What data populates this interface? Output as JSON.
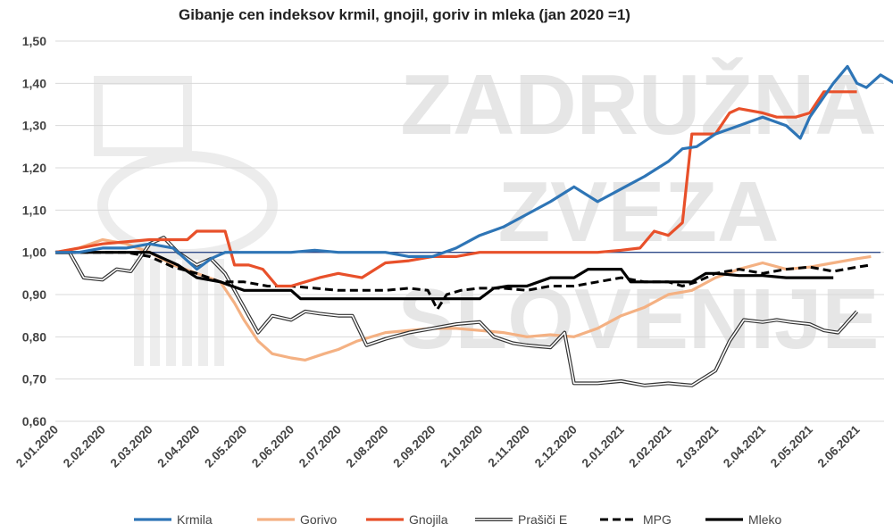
{
  "chart_data": {
    "type": "line",
    "title": "Gibanje cen indeksov krmil, gnojil, goriv in mleka (jan 2020 =1)",
    "xlabel": "",
    "ylabel": "",
    "ylim": [
      0.6,
      1.5
    ],
    "y_ticks": [
      "0,60",
      "0,70",
      "0,80",
      "0,90",
      "1,00",
      "1,10",
      "1,20",
      "1,30",
      "1,40",
      "1,50"
    ],
    "x_ticks": [
      "2.01.2020",
      "2.02.2020",
      "2.03.2020",
      "2.04.2020",
      "2.05.2020",
      "2.06.2020",
      "2.07.2020",
      "2.08.2020",
      "2.09.2020",
      "2.10.2020",
      "2.11.2020",
      "2.12.2020",
      "2.01.2021",
      "2.02.2021",
      "2.03.2021",
      "2.04.2021",
      "2.05.2021",
      "2.06.2021"
    ],
    "grid": true,
    "legend_position": "bottom",
    "reference_line": {
      "y": 1.0,
      "color": "#2f4b8a"
    },
    "watermark": [
      "ZADRUŽNA",
      "ZVEZA",
      "SLOVENIJE"
    ],
    "series": [
      {
        "name": "Krmila",
        "color": "#2e75b6",
        "style": "solid",
        "points": [
          [
            0,
            1.0
          ],
          [
            0.5,
            1.0
          ],
          [
            1,
            1.01
          ],
          [
            1.5,
            1.01
          ],
          [
            2,
            1.02
          ],
          [
            2.5,
            1.01
          ],
          [
            3,
            0.96
          ],
          [
            3.3,
            0.985
          ],
          [
            3.6,
            1.0
          ],
          [
            4,
            1.0
          ],
          [
            5,
            1.0
          ],
          [
            5.5,
            1.005
          ],
          [
            6,
            1.0
          ],
          [
            7,
            1.0
          ],
          [
            7.5,
            0.99
          ],
          [
            8,
            0.99
          ],
          [
            8.5,
            1.01
          ],
          [
            9,
            1.04
          ],
          [
            9.5,
            1.06
          ],
          [
            10,
            1.09
          ],
          [
            10.5,
            1.12
          ],
          [
            11,
            1.155
          ],
          [
            11.5,
            1.12
          ],
          [
            12,
            1.15
          ],
          [
            12.5,
            1.18
          ],
          [
            13,
            1.215
          ],
          [
            13.3,
            1.245
          ],
          [
            13.6,
            1.25
          ],
          [
            14,
            1.28
          ],
          [
            14.5,
            1.3
          ],
          [
            15,
            1.32
          ],
          [
            15.5,
            1.3
          ],
          [
            15.8,
            1.27
          ],
          [
            16,
            1.32
          ],
          [
            16.5,
            1.4
          ],
          [
            16.8,
            1.44
          ],
          [
            17,
            1.4
          ],
          [
            17.2,
            1.39
          ],
          [
            17.5,
            1.42
          ],
          [
            17.8,
            1.4
          ],
          [
            18,
            1.37
          ]
        ]
      },
      {
        "name": "Gorivo",
        "color": "#f4b183",
        "style": "solid",
        "points": [
          [
            0,
            1.0
          ],
          [
            0.5,
            1.01
          ],
          [
            1,
            1.03
          ],
          [
            1.5,
            1.02
          ],
          [
            2,
            1.0
          ],
          [
            2.5,
            0.97
          ],
          [
            3,
            0.95
          ],
          [
            3.5,
            0.93
          ],
          [
            3.8,
            0.88
          ],
          [
            4,
            0.84
          ],
          [
            4.3,
            0.79
          ],
          [
            4.6,
            0.76
          ],
          [
            5,
            0.75
          ],
          [
            5.3,
            0.745
          ],
          [
            5.7,
            0.76
          ],
          [
            6,
            0.77
          ],
          [
            6.4,
            0.79
          ],
          [
            7,
            0.81
          ],
          [
            7.5,
            0.815
          ],
          [
            8,
            0.82
          ],
          [
            8.5,
            0.82
          ],
          [
            9,
            0.815
          ],
          [
            9.5,
            0.81
          ],
          [
            10,
            0.8
          ],
          [
            10.5,
            0.805
          ],
          [
            11,
            0.8
          ],
          [
            11.5,
            0.82
          ],
          [
            12,
            0.85
          ],
          [
            12.5,
            0.87
          ],
          [
            13,
            0.9
          ],
          [
            13.5,
            0.91
          ],
          [
            14,
            0.94
          ],
          [
            14.5,
            0.96
          ],
          [
            15,
            0.975
          ],
          [
            15.5,
            0.96
          ],
          [
            16,
            0.965
          ],
          [
            16.5,
            0.975
          ],
          [
            17,
            0.985
          ],
          [
            17.3,
            0.99
          ]
        ]
      },
      {
        "name": "Gnojila",
        "color": "#e8502a",
        "style": "solid",
        "points": [
          [
            0,
            1.0
          ],
          [
            1,
            1.02
          ],
          [
            2,
            1.03
          ],
          [
            2.8,
            1.03
          ],
          [
            3,
            1.05
          ],
          [
            3.6,
            1.05
          ],
          [
            3.8,
            0.97
          ],
          [
            4.1,
            0.97
          ],
          [
            4.4,
            0.96
          ],
          [
            4.7,
            0.92
          ],
          [
            5,
            0.92
          ],
          [
            5.3,
            0.93
          ],
          [
            5.6,
            0.94
          ],
          [
            6,
            0.95
          ],
          [
            6.5,
            0.94
          ],
          [
            7,
            0.975
          ],
          [
            7.5,
            0.98
          ],
          [
            8,
            0.99
          ],
          [
            8.5,
            0.99
          ],
          [
            9,
            1.0
          ],
          [
            10,
            1.0
          ],
          [
            11,
            1.0
          ],
          [
            11.5,
            1.0
          ],
          [
            12,
            1.005
          ],
          [
            12.4,
            1.01
          ],
          [
            12.7,
            1.05
          ],
          [
            13,
            1.04
          ],
          [
            13.3,
            1.07
          ],
          [
            13.5,
            1.28
          ],
          [
            14,
            1.28
          ],
          [
            14.3,
            1.33
          ],
          [
            14.5,
            1.34
          ],
          [
            15,
            1.33
          ],
          [
            15.3,
            1.32
          ],
          [
            15.7,
            1.32
          ],
          [
            16,
            1.33
          ],
          [
            16.3,
            1.38
          ],
          [
            16.7,
            1.38
          ],
          [
            17,
            1.38
          ]
        ]
      },
      {
        "name": "Prašiči E",
        "color": "#333333",
        "style": "double",
        "points": [
          [
            0,
            1.0
          ],
          [
            0.3,
            1.0
          ],
          [
            0.6,
            0.94
          ],
          [
            1,
            0.935
          ],
          [
            1.3,
            0.96
          ],
          [
            1.6,
            0.955
          ],
          [
            2,
            1.02
          ],
          [
            2.3,
            1.035
          ],
          [
            2.6,
            1.0
          ],
          [
            3,
            0.97
          ],
          [
            3.3,
            0.985
          ],
          [
            3.6,
            0.95
          ],
          [
            4,
            0.87
          ],
          [
            4.3,
            0.81
          ],
          [
            4.6,
            0.85
          ],
          [
            5,
            0.84
          ],
          [
            5.3,
            0.86
          ],
          [
            5.6,
            0.855
          ],
          [
            6,
            0.85
          ],
          [
            6.3,
            0.85
          ],
          [
            6.6,
            0.78
          ],
          [
            7,
            0.795
          ],
          [
            7.5,
            0.81
          ],
          [
            8,
            0.82
          ],
          [
            8.5,
            0.83
          ],
          [
            9,
            0.835
          ],
          [
            9.3,
            0.8
          ],
          [
            9.7,
            0.785
          ],
          [
            10,
            0.78
          ],
          [
            10.5,
            0.775
          ],
          [
            10.8,
            0.81
          ],
          [
            11,
            0.69
          ],
          [
            11.5,
            0.69
          ],
          [
            12,
            0.695
          ],
          [
            12.5,
            0.685
          ],
          [
            13,
            0.69
          ],
          [
            13.5,
            0.685
          ],
          [
            14,
            0.72
          ],
          [
            14.3,
            0.79
          ],
          [
            14.6,
            0.84
          ],
          [
            15,
            0.835
          ],
          [
            15.3,
            0.84
          ],
          [
            15.6,
            0.835
          ],
          [
            16,
            0.83
          ],
          [
            16.3,
            0.815
          ],
          [
            16.6,
            0.81
          ],
          [
            17,
            0.86
          ]
        ]
      },
      {
        "name": "MPG",
        "color": "#000000",
        "style": "dashed",
        "points": [
          [
            0,
            1.0
          ],
          [
            0.5,
            1.0
          ],
          [
            1,
            1.0
          ],
          [
            1.5,
            1.0
          ],
          [
            2,
            0.99
          ],
          [
            2.5,
            0.965
          ],
          [
            3,
            0.95
          ],
          [
            3.5,
            0.93
          ],
          [
            4,
            0.93
          ],
          [
            4.5,
            0.92
          ],
          [
            5,
            0.92
          ],
          [
            5.5,
            0.915
          ],
          [
            6,
            0.91
          ],
          [
            6.5,
            0.91
          ],
          [
            7,
            0.91
          ],
          [
            7.5,
            0.915
          ],
          [
            7.9,
            0.91
          ],
          [
            8.1,
            0.865
          ],
          [
            8.3,
            0.9
          ],
          [
            8.6,
            0.91
          ],
          [
            9,
            0.915
          ],
          [
            9.5,
            0.915
          ],
          [
            10,
            0.91
          ],
          [
            10.5,
            0.92
          ],
          [
            11,
            0.92
          ],
          [
            11.5,
            0.93
          ],
          [
            12,
            0.94
          ],
          [
            12.5,
            0.93
          ],
          [
            13,
            0.93
          ],
          [
            13.3,
            0.92
          ],
          [
            13.6,
            0.93
          ],
          [
            14,
            0.95
          ],
          [
            14.5,
            0.96
          ],
          [
            15,
            0.95
          ],
          [
            15.5,
            0.96
          ],
          [
            16,
            0.965
          ],
          [
            16.5,
            0.955
          ],
          [
            17,
            0.965
          ],
          [
            17.3,
            0.97
          ]
        ]
      },
      {
        "name": "Mleko",
        "color": "#000000",
        "style": "solid",
        "points": [
          [
            0,
            1.0
          ],
          [
            1,
            1.0
          ],
          [
            2,
            1.0
          ],
          [
            2.6,
            0.97
          ],
          [
            3,
            0.94
          ],
          [
            3.5,
            0.93
          ],
          [
            4,
            0.91
          ],
          [
            4.5,
            0.91
          ],
          [
            5,
            0.91
          ],
          [
            5.2,
            0.89
          ],
          [
            6,
            0.89
          ],
          [
            7,
            0.89
          ],
          [
            8,
            0.89
          ],
          [
            9,
            0.89
          ],
          [
            9.3,
            0.915
          ],
          [
            9.6,
            0.92
          ],
          [
            10,
            0.92
          ],
          [
            10.5,
            0.94
          ],
          [
            11,
            0.94
          ],
          [
            11.3,
            0.96
          ],
          [
            12,
            0.96
          ],
          [
            12.2,
            0.93
          ],
          [
            13,
            0.93
          ],
          [
            13.5,
            0.93
          ],
          [
            13.8,
            0.95
          ],
          [
            14,
            0.95
          ],
          [
            14.5,
            0.945
          ],
          [
            15,
            0.945
          ],
          [
            15.5,
            0.94
          ],
          [
            16,
            0.94
          ],
          [
            16.5,
            0.94
          ]
        ]
      }
    ]
  }
}
